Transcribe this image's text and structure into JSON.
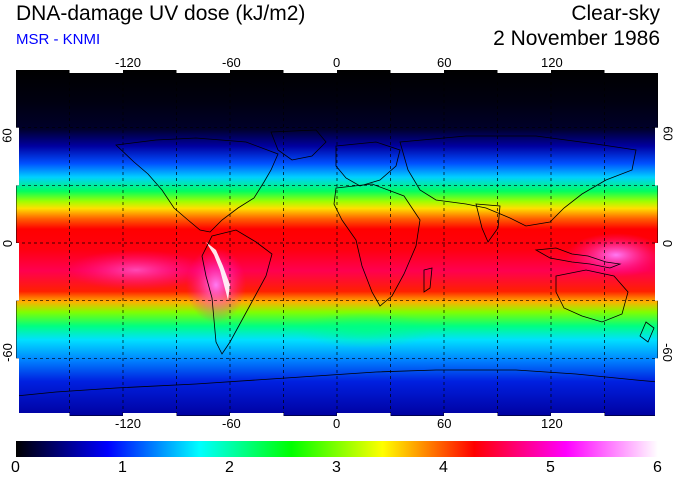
{
  "header": {
    "title": "DNA-damage UV dose (kJ/m2)",
    "subtitle": "MSR - KNMI",
    "sky_condition": "Clear-sky",
    "date": "2 November 1986"
  },
  "map": {
    "lon_ticks": [
      "-120",
      "-60",
      "0",
      "60",
      "120"
    ],
    "lat_ticks": [
      "60",
      "0",
      "-60"
    ],
    "lon_range": [
      -180,
      180
    ],
    "lat_range": [
      -90,
      90
    ],
    "grid_spacing_deg": 30,
    "gridlines": "dashed",
    "projection": "equirectangular"
  },
  "colorbar": {
    "ticks": [
      "0",
      "1",
      "2",
      "3",
      "4",
      "5",
      "6"
    ],
    "range": [
      0,
      6
    ],
    "colors": [
      "#000000",
      "#0000ff",
      "#00ffff",
      "#00ff00",
      "#ffff00",
      "#ff0000",
      "#ff00ff",
      "#ffffff"
    ]
  }
}
